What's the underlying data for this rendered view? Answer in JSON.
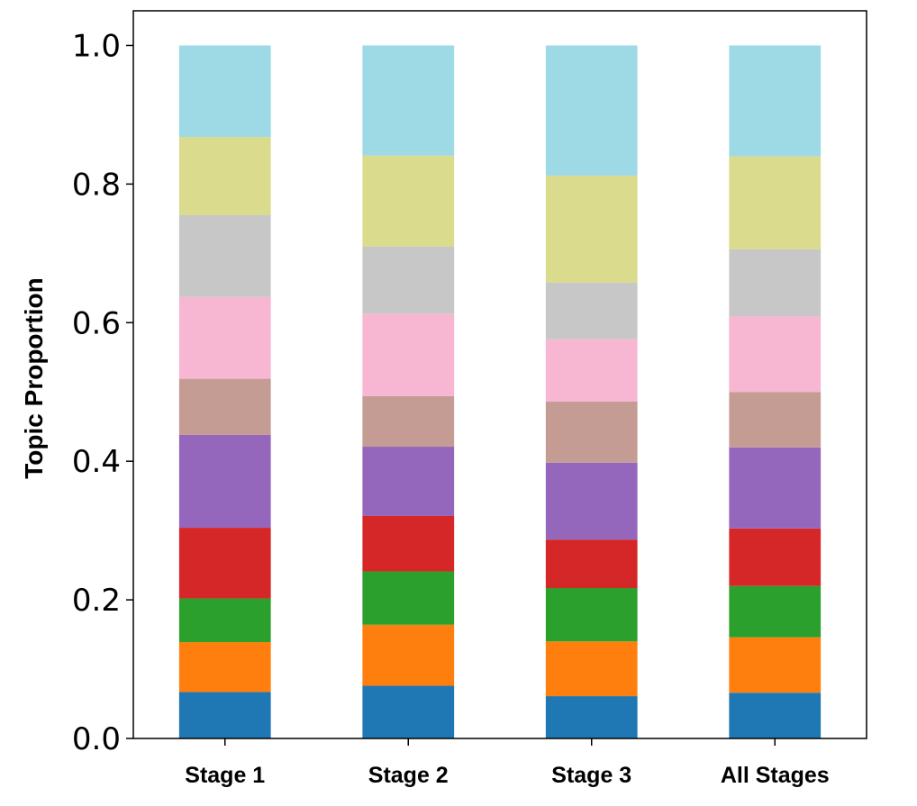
{
  "chart_data": {
    "type": "bar",
    "stacked": true,
    "title": "",
    "xlabel": "",
    "ylabel": "Topic Proportion",
    "ylim": [
      0,
      1.05
    ],
    "yticks": [
      "0.0",
      "0.2",
      "0.4",
      "0.6",
      "0.8",
      "1.0"
    ],
    "grid": false,
    "legend": "none",
    "categories": [
      "Stage 1",
      "Stage 2",
      "Stage 3",
      "All Stages"
    ],
    "series": [
      {
        "color": "#1f77b4",
        "values": [
          0.067,
          0.076,
          0.061,
          0.066
        ]
      },
      {
        "color": "#ff7f0e",
        "values": [
          0.072,
          0.088,
          0.079,
          0.08
        ]
      },
      {
        "color": "#2ca02c",
        "values": [
          0.063,
          0.077,
          0.077,
          0.074
        ]
      },
      {
        "color": "#d62728",
        "values": [
          0.102,
          0.08,
          0.07,
          0.083
        ]
      },
      {
        "color": "#9467bd",
        "values": [
          0.134,
          0.1,
          0.111,
          0.117
        ]
      },
      {
        "color": "#c49c94",
        "values": [
          0.081,
          0.073,
          0.088,
          0.08
        ]
      },
      {
        "color": "#f7b6d2",
        "values": [
          0.118,
          0.119,
          0.09,
          0.109
        ]
      },
      {
        "color": "#c7c7c7",
        "values": [
          0.118,
          0.097,
          0.082,
          0.097
        ]
      },
      {
        "color": "#dbdb8d",
        "values": [
          0.113,
          0.131,
          0.154,
          0.134
        ]
      },
      {
        "color": "#9edae5",
        "values": [
          0.132,
          0.159,
          0.188,
          0.16
        ]
      }
    ]
  }
}
